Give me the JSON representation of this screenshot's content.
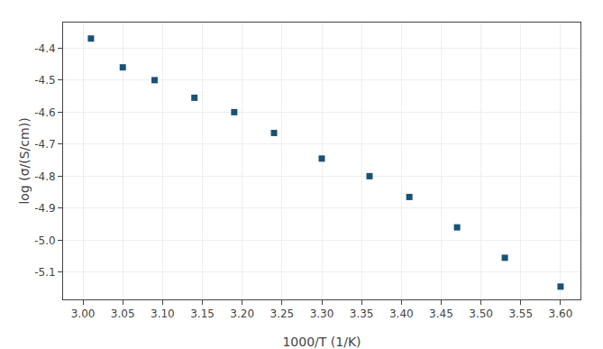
{
  "chart_data": {
    "type": "scatter",
    "x": [
      3.01,
      3.05,
      3.09,
      3.14,
      3.19,
      3.24,
      3.3,
      3.36,
      3.41,
      3.47,
      3.53,
      3.6
    ],
    "values": [
      -4.37,
      -4.46,
      -4.5,
      -4.555,
      -4.6,
      -4.665,
      -4.745,
      -4.8,
      -4.865,
      -4.96,
      -5.055,
      -5.145
    ],
    "xlabel": "1000/T (1/K)",
    "ylabel": "log (σ/(S/cm))",
    "xlim": [
      2.975,
      3.625
    ],
    "ylim": [
      -5.185,
      -4.32
    ],
    "xticks": [
      {
        "value": 3.0,
        "label": "3.00"
      },
      3.05,
      {
        "value": 3.1,
        "label": "3.10"
      },
      3.15,
      {
        "value": 3.2,
        "label": "3.20"
      },
      3.25,
      {
        "value": 3.3,
        "label": "3.30"
      },
      3.35,
      {
        "value": 3.4,
        "label": "3.40"
      },
      3.45,
      {
        "value": 3.5,
        "label": "3.50"
      },
      3.55,
      {
        "value": 3.6,
        "label": "3.60"
      }
    ],
    "yticks": [
      -5.1,
      {
        "value": -5.0,
        "label": "-5.0"
      },
      -4.9,
      -4.8,
      -4.7,
      -4.6,
      -4.5,
      -4.4
    ],
    "color": "#1a5276",
    "marker": "square",
    "grid": true
  }
}
